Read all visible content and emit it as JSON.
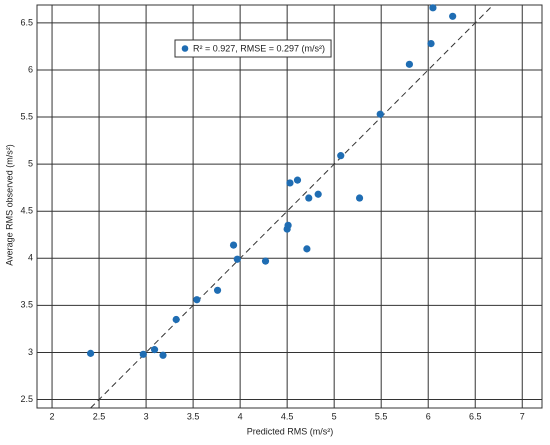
{
  "chart_data": {
    "type": "scatter",
    "xlabel": "Predicted RMS (m/s²)",
    "ylabel": "Average RMS observed  (m/s²)",
    "series": [
      {
        "name": "R² = 0.927, RMSE = 0.297 (m/s²)",
        "color": "#1f6db3",
        "x": [
          2.41,
          2.97,
          3.09,
          3.18,
          3.32,
          3.54,
          3.76,
          3.93,
          3.97,
          4.27,
          4.5,
          4.51,
          4.53,
          4.61,
          4.71,
          4.73,
          4.83,
          5.07,
          5.27,
          5.49,
          5.8,
          6.03,
          6.05,
          6.26
        ],
        "values": [
          2.99,
          2.98,
          3.03,
          2.97,
          3.35,
          3.56,
          3.66,
          4.14,
          3.99,
          3.97,
          4.31,
          4.35,
          4.8,
          4.83,
          4.1,
          4.64,
          4.68,
          5.09,
          4.64,
          5.53,
          6.06,
          6.28,
          6.66,
          6.57
        ]
      }
    ],
    "xlim": [
      1.84,
      7.21
    ],
    "ylim": [
      2.41,
      6.69
    ],
    "xticks": [
      2,
      2.5,
      3,
      3.5,
      4,
      4.5,
      5,
      5.5,
      6,
      6.5,
      7
    ],
    "yticks": [
      2.5,
      3,
      3.5,
      4,
      4.5,
      5,
      5.5,
      6,
      6.5
    ],
    "grid": true,
    "legend": "top-left",
    "reference_line": true
  }
}
